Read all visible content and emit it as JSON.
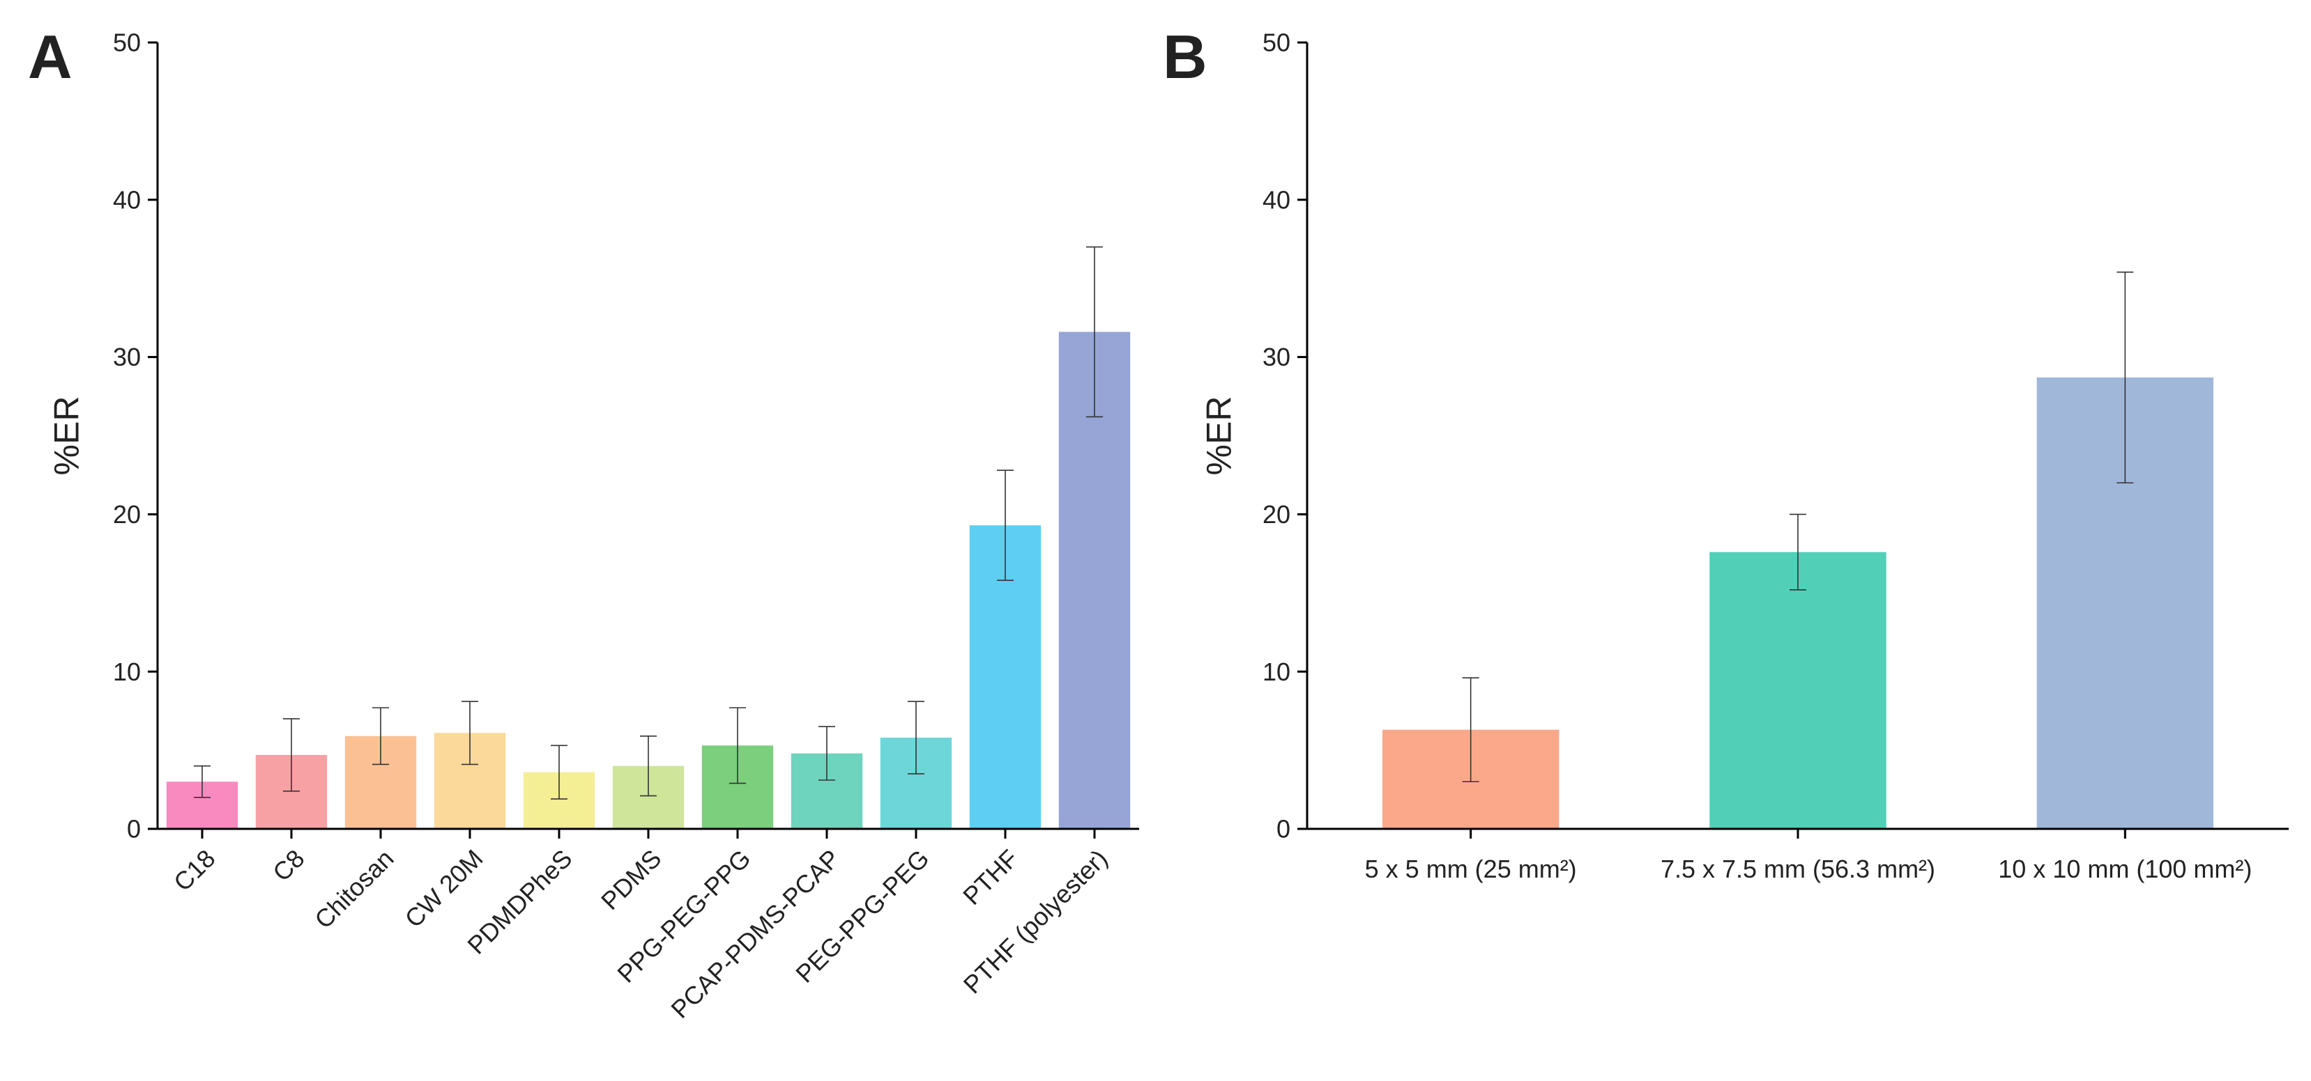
{
  "chart_data": [
    {
      "type": "bar",
      "panel_label": "A",
      "y_label": "%ER",
      "categories": [
        "C18",
        "C8",
        "Chitosan",
        "CW 20M",
        "PDMDPheS",
        "PDMS",
        "PPG-PEG-PPG",
        "PCAP-PDMS-PCAP",
        "PEG-PPG-PEG",
        "PTHF",
        "PTHF (polyester)"
      ],
      "values": [
        3.0,
        4.7,
        5.9,
        6.1,
        3.6,
        4.0,
        5.3,
        4.8,
        5.8,
        19.3,
        31.6
      ],
      "errors": [
        1.0,
        2.3,
        1.8,
        2.0,
        1.7,
        1.9,
        2.4,
        1.7,
        2.3,
        3.5,
        5.4
      ],
      "colors": [
        "#f98ac0",
        "#f7a1a4",
        "#fbc194",
        "#fbd99a",
        "#f4ee95",
        "#cfe59a",
        "#7ccf7d",
        "#6fd4be",
        "#6dd6d8",
        "#5ecff2",
        "#96a5d6"
      ],
      "ylim": [
        0,
        50
      ],
      "yticks": [
        0,
        10,
        20,
        30,
        40,
        50
      ]
    },
    {
      "type": "bar",
      "panel_label": "B",
      "y_label": "%ER",
      "categories": [
        "5 x 5 mm (25 mm²)",
        "7.5 x 7.5 mm (56.3 mm²)",
        "10 x 10 mm (100 mm²)"
      ],
      "values": [
        6.3,
        17.6,
        28.7
      ],
      "errors": [
        3.3,
        2.4,
        6.7
      ],
      "colors": [
        "#fba88a",
        "#52cfb7",
        "#a1b7da"
      ],
      "ylim": [
        0,
        50
      ],
      "yticks": [
        0,
        10,
        20,
        30,
        40,
        50
      ]
    }
  ]
}
